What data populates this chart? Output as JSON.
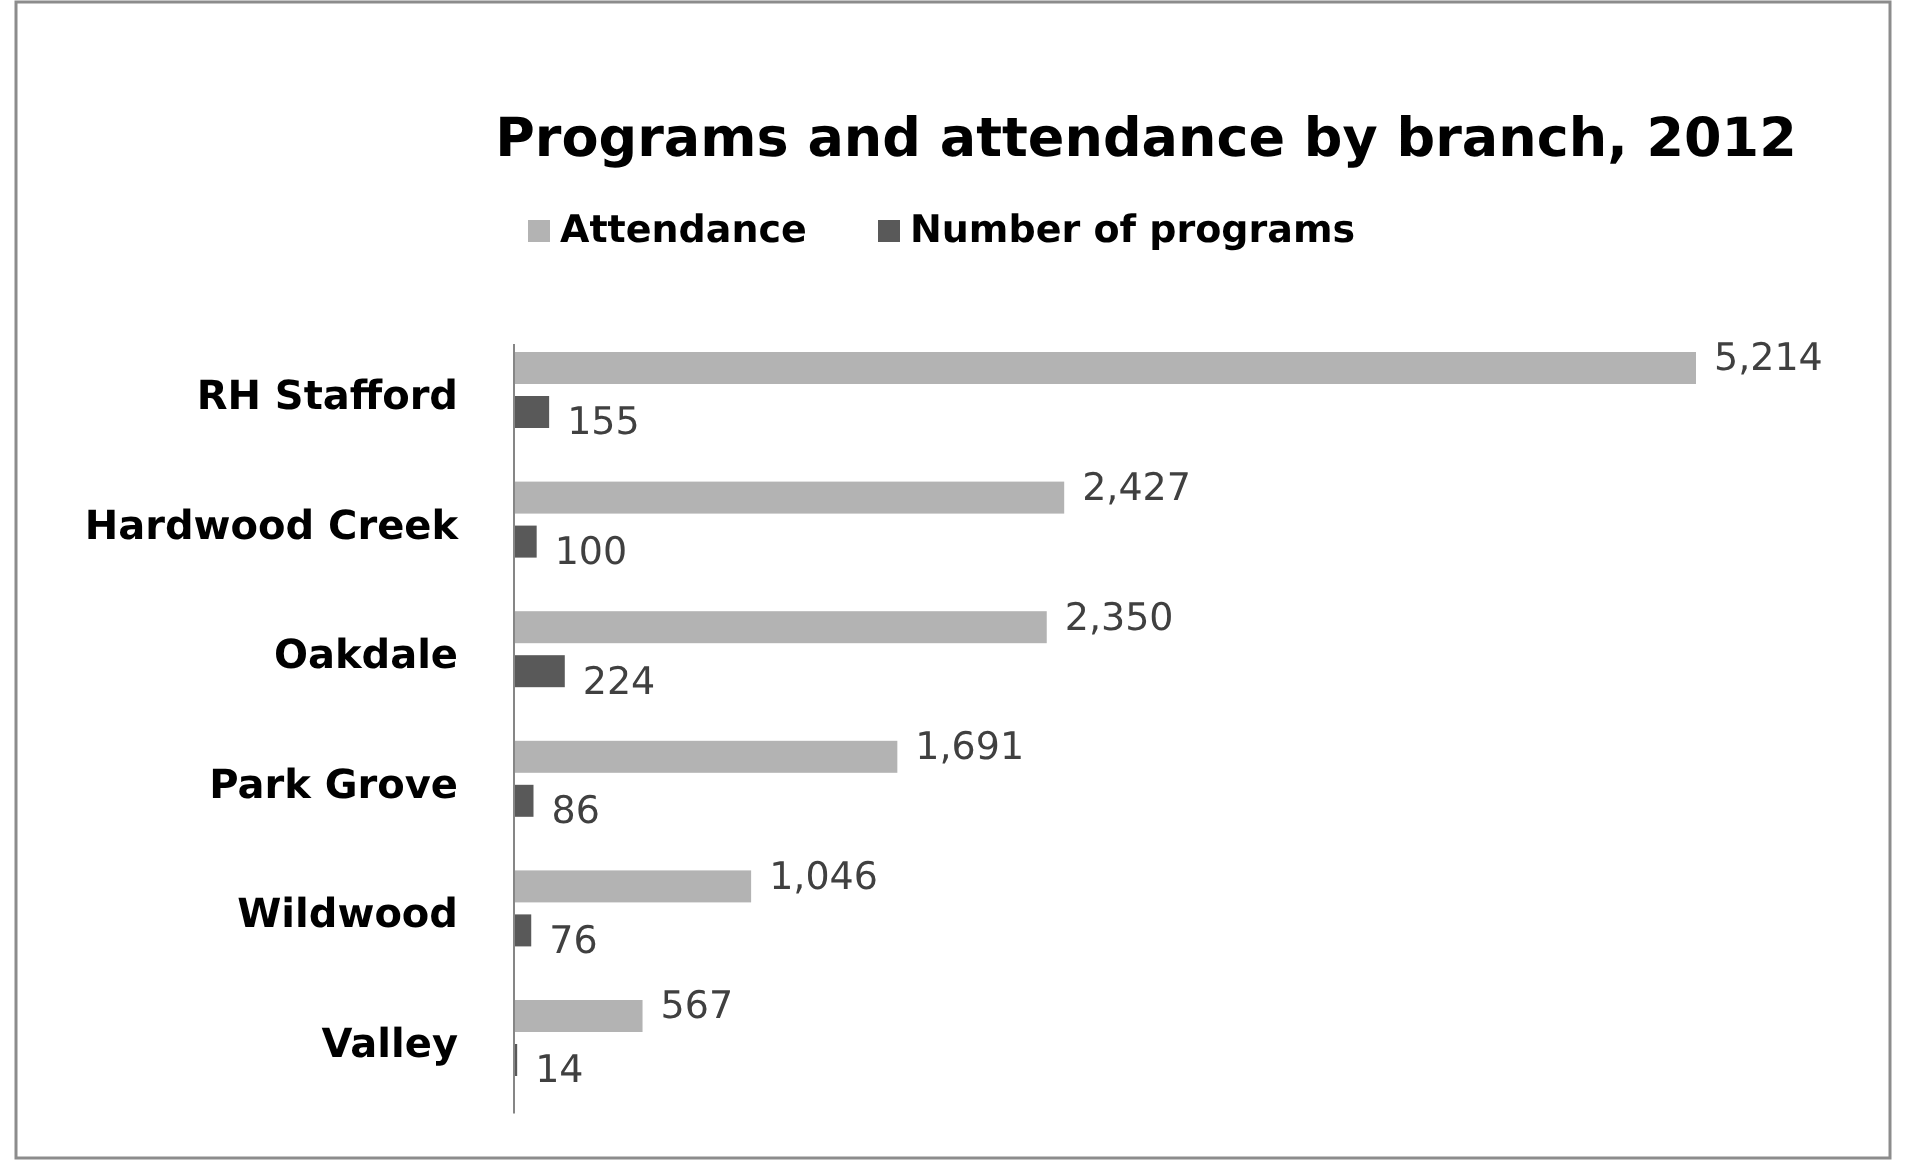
{
  "chart_data": {
    "type": "bar",
    "orientation": "horizontal",
    "title": "Programs and attendance by branch, 2012",
    "categories": [
      "RH Stafford",
      "Hardwood Creek",
      "Oakdale",
      "Park Grove",
      "Wildwood",
      "Valley"
    ],
    "series": [
      {
        "name": "Attendance",
        "color": "#b3b3b3",
        "values": [
          5214,
          2427,
          2350,
          1691,
          1046,
          567
        ],
        "value_labels": [
          "5,214",
          "2,427",
          "2,350",
          "1,691",
          "1,046",
          "567"
        ]
      },
      {
        "name": "Number of programs",
        "color": "#595959",
        "values": [
          155,
          100,
          224,
          86,
          76,
          14
        ],
        "value_labels": [
          "155",
          "100",
          "224",
          "86",
          "76",
          "14"
        ]
      }
    ],
    "legend": "top"
  }
}
